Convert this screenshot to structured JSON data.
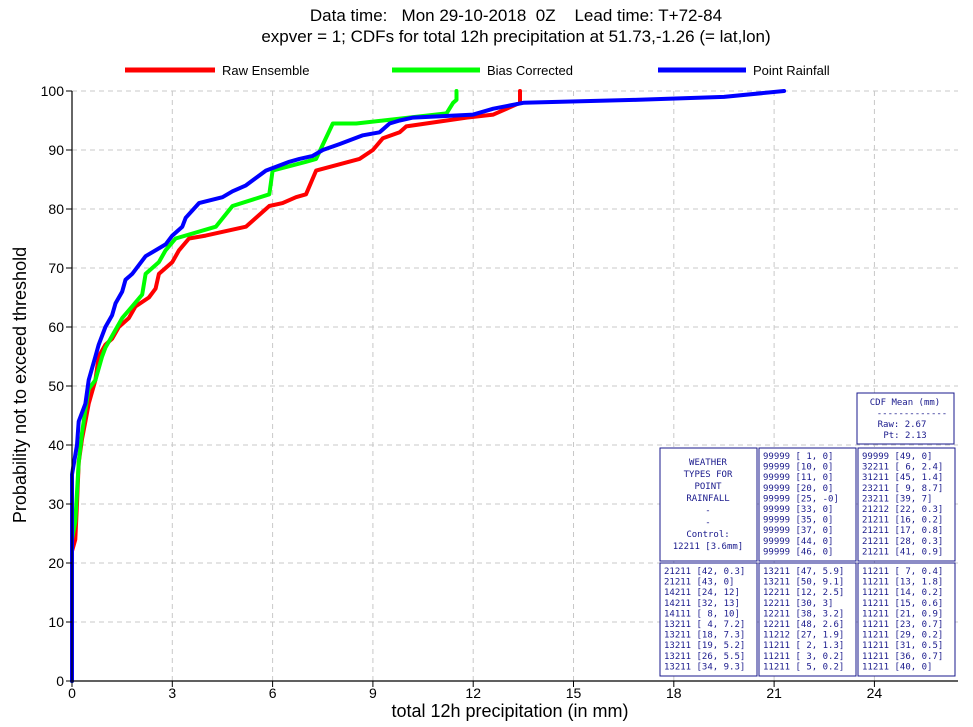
{
  "title_line1": "Data time:   Mon 29-10-2018  0Z    Lead time: T+72-84",
  "title_line2": "expver = 1; CDFs for total 12h precipitation at 51.73,-1.26 (= lat,lon)",
  "chart_data": {
    "type": "line",
    "xlabel": "total 12h precipitation  (in mm)",
    "ylabel": "Probability not to exceed threshold",
    "xlim": [
      0,
      26.5
    ],
    "ylim": [
      0,
      100
    ],
    "xticks": [
      0,
      3,
      6,
      9,
      12,
      15,
      18,
      21,
      24
    ],
    "yticks": [
      0,
      10,
      20,
      30,
      40,
      50,
      60,
      70,
      80,
      90,
      100
    ],
    "grid": true,
    "legend_position": "top",
    "series": [
      {
        "name": "Raw Ensemble",
        "color": "#ff0000",
        "points": [
          [
            0,
            0
          ],
          [
            0,
            22
          ],
          [
            0.1,
            24
          ],
          [
            0.15,
            30
          ],
          [
            0.2,
            37
          ],
          [
            0.3,
            41
          ],
          [
            0.4,
            44
          ],
          [
            0.5,
            47
          ],
          [
            0.7,
            51
          ],
          [
            0.8,
            55
          ],
          [
            1.0,
            57
          ],
          [
            1.2,
            58
          ],
          [
            1.4,
            60
          ],
          [
            1.7,
            61.5
          ],
          [
            1.9,
            63.5
          ],
          [
            2.3,
            65
          ],
          [
            2.5,
            66.5
          ],
          [
            2.6,
            69
          ],
          [
            3.0,
            71
          ],
          [
            3.2,
            73
          ],
          [
            3.5,
            75
          ],
          [
            4.0,
            75.5
          ],
          [
            5.2,
            77
          ],
          [
            5.9,
            80.5
          ],
          [
            6.3,
            81
          ],
          [
            6.7,
            82
          ],
          [
            7.0,
            82.5
          ],
          [
            7.3,
            86.5
          ],
          [
            8.6,
            88.5
          ],
          [
            9.0,
            90
          ],
          [
            9.3,
            92
          ],
          [
            9.8,
            93
          ],
          [
            10.0,
            94
          ],
          [
            11.8,
            95.5
          ],
          [
            12.6,
            96
          ],
          [
            13.4,
            98
          ],
          [
            13.4,
            98.5
          ],
          [
            13.4,
            100
          ]
        ]
      },
      {
        "name": "Bias Corrected",
        "color": "#00ff00",
        "points": [
          [
            0,
            0
          ],
          [
            0,
            24
          ],
          [
            0.1,
            27
          ],
          [
            0.15,
            32
          ],
          [
            0.2,
            37
          ],
          [
            0.3,
            42
          ],
          [
            0.4,
            46
          ],
          [
            0.5,
            49.5
          ],
          [
            0.7,
            51
          ],
          [
            0.9,
            55
          ],
          [
            1.0,
            56.5
          ],
          [
            1.5,
            61.5
          ],
          [
            1.8,
            63.5
          ],
          [
            2.1,
            65.5
          ],
          [
            2.2,
            69
          ],
          [
            2.6,
            71
          ],
          [
            2.8,
            73
          ],
          [
            3.1,
            75
          ],
          [
            4.3,
            77
          ],
          [
            4.8,
            80.5
          ],
          [
            5.9,
            82.5
          ],
          [
            6.0,
            86.5
          ],
          [
            7.0,
            88
          ],
          [
            7.3,
            88.5
          ],
          [
            7.8,
            94.5
          ],
          [
            8.5,
            94.5
          ],
          [
            11.2,
            96.2
          ],
          [
            11.4,
            98
          ],
          [
            11.5,
            98.5
          ],
          [
            11.5,
            100
          ]
        ]
      },
      {
        "name": "Point Rainfall",
        "color": "#0000ff",
        "points": [
          [
            0,
            0
          ],
          [
            0,
            35
          ],
          [
            0.15,
            40
          ],
          [
            0.2,
            44
          ],
          [
            0.4,
            47
          ],
          [
            0.5,
            51
          ],
          [
            0.7,
            55
          ],
          [
            0.8,
            57
          ],
          [
            1.0,
            60
          ],
          [
            1.2,
            62
          ],
          [
            1.3,
            64
          ],
          [
            1.5,
            66
          ],
          [
            1.6,
            68
          ],
          [
            1.8,
            69
          ],
          [
            2.2,
            72
          ],
          [
            2.8,
            74
          ],
          [
            3.0,
            75.5
          ],
          [
            3.3,
            77
          ],
          [
            3.4,
            78.5
          ],
          [
            3.8,
            81
          ],
          [
            4.5,
            82
          ],
          [
            4.8,
            83
          ],
          [
            5.2,
            84
          ],
          [
            5.8,
            86.5
          ],
          [
            6.5,
            88
          ],
          [
            6.8,
            88.5
          ],
          [
            7.2,
            89
          ],
          [
            7.5,
            90
          ],
          [
            8.0,
            91
          ],
          [
            8.7,
            92.5
          ],
          [
            9.2,
            93
          ],
          [
            9.5,
            94.5
          ],
          [
            9.8,
            95
          ],
          [
            10.2,
            95.5
          ],
          [
            12.0,
            96
          ],
          [
            12.6,
            97
          ],
          [
            13.5,
            98
          ],
          [
            16.8,
            98.5
          ],
          [
            19.5,
            99
          ],
          [
            21.3,
            100
          ]
        ]
      }
    ]
  },
  "cdf_mean": {
    "header": "CDF Mean (mm)",
    "divider": "-------------",
    "raw": "Raw:  2.67",
    "pt": "Pt:  2.13"
  },
  "weather_types": {
    "lines": [
      "WEATHER",
      "TYPES FOR",
      "POINT",
      "RAINFALL",
      "-",
      "-",
      "Control:",
      "12211 [3.6mm]"
    ]
  },
  "grid_columns": [
    [
      "99999 [ 1, 0]",
      "99999 [10, 0]",
      "99999 [11, 0]",
      "99999 [20, 0]",
      "99999 [25, -0]",
      "99999 [33, 0]",
      "99999 [35, 0]",
      "99999 [37, 0]",
      "99999 [44, 0]",
      "99999 [46, 0]"
    ],
    [
      "99999 [49, 0]",
      "32211 [ 6, 2.4]",
      "31211 [45, 1.4]",
      "23211 [ 9, 8.7]",
      "23211 [39, 7]",
      "21212 [22, 0.3]",
      "21211 [16, 0.2]",
      "21211 [17, 0.8]",
      "21211 [28, 0.3]",
      "21211 [41, 0.9]"
    ],
    [
      "21211 [42, 0.3]",
      "21211 [43, 0]",
      "14211 [24, 12]",
      "14211 [32, 13]",
      "14111 [ 8, 10]",
      "13211 [ 4, 7.2]",
      "13211 [18, 7.3]",
      "13211 [19, 5.2]",
      "13211 [26, 5.5]",
      "13211 [34, 9.3]"
    ],
    [
      "13211 [47, 5.9]",
      "13211 [50, 9.1]",
      "12211 [12, 2.5]",
      "12211 [30, 3]",
      "12211 [38, 3.2]",
      "12211 [48, 2.6]",
      "11212 [27, 1.9]",
      "11211 [ 2, 1.3]",
      "11211 [ 3, 0.2]",
      "11211 [ 5, 0.2]"
    ],
    [
      "11211 [ 7, 0.4]",
      "11211 [13, 1.8]",
      "11211 [14, 0.2]",
      "11211 [15, 0.6]",
      "11211 [21, 0.9]",
      "11211 [23, 0.7]",
      "11211 [29, 0.2]",
      "11211 [31, 0.5]",
      "11211 [36, 0.7]",
      "11211 [40, 0]"
    ]
  ]
}
